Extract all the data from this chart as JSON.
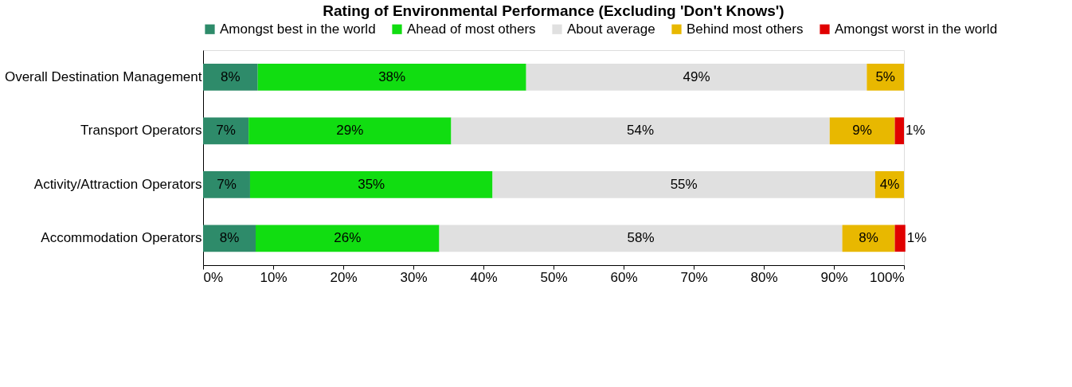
{
  "chart_data": {
    "type": "bar",
    "orientation": "horizontal",
    "stacked": true,
    "title": "Rating of Environmental Performance (Excluding 'Don't Knows')",
    "categories": [
      "Overall Destination Management",
      "Transport Operators",
      "Activity/Attraction Operators",
      "Accommodation Operators"
    ],
    "series": [
      {
        "name": "Amongst best in the world",
        "color": "#2e8b6a",
        "values": [
          7.8,
          6.5,
          6.7,
          7.5
        ],
        "value_labels": [
          "8%",
          "7%",
          "7%",
          "8%"
        ]
      },
      {
        "name": "Ahead of most others",
        "color": "#11dd11",
        "values": [
          38.3,
          28.9,
          34.6,
          26.2
        ],
        "value_labels": [
          "38%",
          "29%",
          "35%",
          "26%"
        ]
      },
      {
        "name": "About average",
        "color": "#e0e0e0",
        "values": [
          48.6,
          54.0,
          54.6,
          57.5
        ],
        "value_labels": [
          "49%",
          "54%",
          "55%",
          "58%"
        ]
      },
      {
        "name": "Behind most others",
        "color": "#e8b800",
        "values": [
          5.3,
          9.3,
          4.1,
          7.5
        ],
        "value_labels": [
          "5%",
          "9%",
          "4%",
          "8%"
        ]
      },
      {
        "name": "Amongst worst in the world",
        "color": "#e00000",
        "values": [
          0,
          1.3,
          0,
          1.5
        ],
        "value_labels": [
          null,
          "1%",
          null,
          "1%"
        ]
      }
    ],
    "xlim": [
      0,
      100
    ],
    "xticks": [
      {
        "value": 0,
        "label": "0%"
      },
      {
        "value": 10,
        "label": "10%"
      },
      {
        "value": 20,
        "label": "20%"
      },
      {
        "value": 30,
        "label": "30%"
      },
      {
        "value": 40,
        "label": "40%"
      },
      {
        "value": 50,
        "label": "50%"
      },
      {
        "value": 60,
        "label": "60%"
      },
      {
        "value": 70,
        "label": "70%"
      },
      {
        "value": 80,
        "label": "80%"
      },
      {
        "value": 90,
        "label": "90%"
      },
      {
        "value": 100,
        "label": "100%"
      }
    ],
    "legend": "top",
    "grid": false
  }
}
